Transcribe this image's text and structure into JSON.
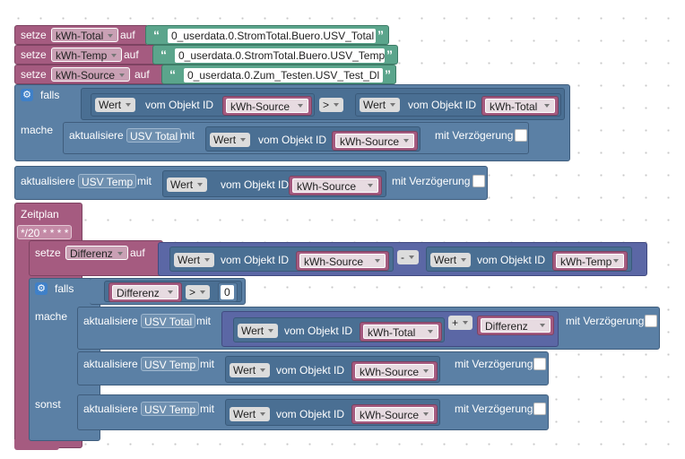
{
  "colors": {
    "variable_block": "#a55b80",
    "io_block": "#5b80a5",
    "string_block": "#5ba58c",
    "math_block": "#5b67a5"
  },
  "icons": {
    "mutator": "gear-icon",
    "quote_open": "“",
    "quote_close": "”"
  },
  "set_blocks": [
    {
      "keyword": "setze",
      "variable": "kWh-Total",
      "auf": "auf",
      "value": "0_userdata.0.StromTotal.Buero.USV_Total"
    },
    {
      "keyword": "setze",
      "variable": "kWh-Temp",
      "auf": "auf",
      "value": "0_userdata.0.StromTotal.Buero.USV_Temp"
    },
    {
      "keyword": "setze",
      "variable": "kWh-Source",
      "auf": "auf",
      "value": "0_userdata.0.Zum_Testen.USV_Test_Dl"
    }
  ],
  "if1": {
    "falls": "falls",
    "mache": "mache",
    "left": {
      "attr": "Wert",
      "label": "vom Objekt ID",
      "var": "kWh-Source"
    },
    "op": ">",
    "right": {
      "attr": "Wert",
      "label": "vom Objekt ID",
      "var": "kWh-Total"
    },
    "update": {
      "label": "aktualisiere",
      "target": "USV Total",
      "mit": "mit",
      "attr": "Wert",
      "obj_label": "vom Objekt ID",
      "var": "kWh-Source",
      "delay": "mit Verzögerung"
    }
  },
  "update_temp": {
    "label": "aktualisiere",
    "target": "USV Temp",
    "mit": "mit",
    "attr": "Wert",
    "obj_label": "vom Objekt ID",
    "var": "kWh-Source",
    "delay": "mit Verzögerung"
  },
  "schedule": {
    "title": "Zeitplan",
    "cron": "*/20 * * * *",
    "set_diff": {
      "keyword": "setze",
      "variable": "Differenz",
      "auf": "auf",
      "left": {
        "attr": "Wert",
        "label": "vom Objekt ID",
        "var": "kWh-Source"
      },
      "op": "-",
      "right": {
        "attr": "Wert",
        "label": "vom Objekt ID",
        "var": "kWh-Temp"
      }
    },
    "if2": {
      "falls": "falls",
      "mache": "mache",
      "sonst": "sonst",
      "cond": {
        "var": "Differenz",
        "op": ">",
        "num": "0"
      },
      "upd1": {
        "label": "aktualisiere",
        "target": "USV Total",
        "mit": "mit",
        "attr": "Wert",
        "obj_label": "vom Objekt ID",
        "var": "kWh-Total",
        "op": "+",
        "var2": "Differenz",
        "delay": "mit Verzögerung"
      },
      "upd2": {
        "label": "aktualisiere",
        "target": "USV Temp",
        "mit": "mit",
        "attr": "Wert",
        "obj_label": "vom Objekt ID",
        "var": "kWh-Source",
        "delay": "mit Verzögerung"
      },
      "upd3": {
        "label": "aktualisiere",
        "target": "USV Temp",
        "mit": "mit",
        "attr": "Wert",
        "obj_label": "vom Objekt ID",
        "var": "kWh-Source",
        "delay": "mit Verzögerung"
      }
    }
  }
}
